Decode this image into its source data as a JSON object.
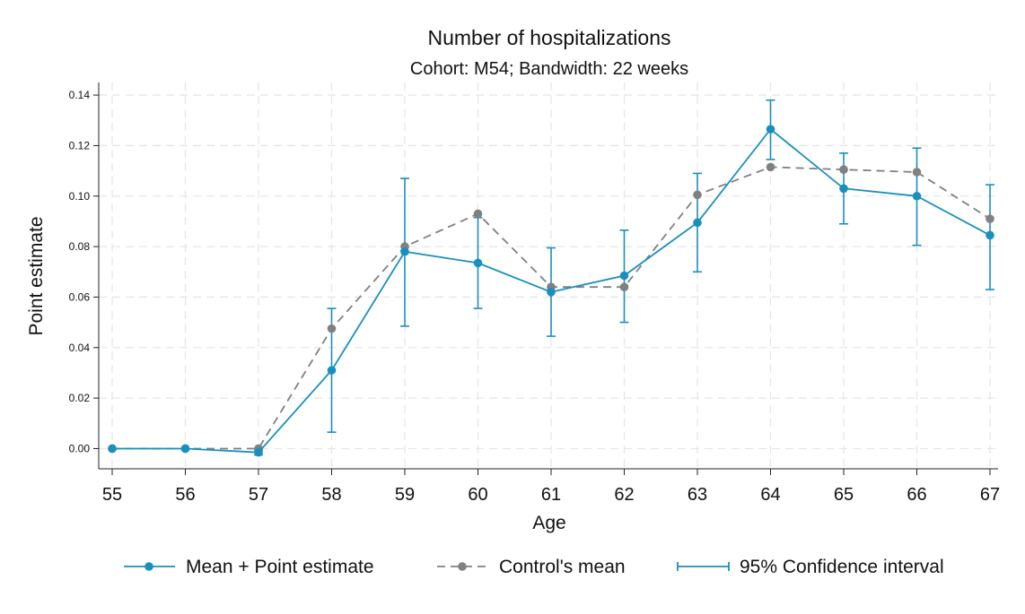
{
  "chart_data": {
    "type": "line",
    "title": "Number of hospitalizations",
    "subtitle": "Cohort: M54; Bandwidth: 22 weeks",
    "xlabel": "Age",
    "ylabel": "Point estimate",
    "x": [
      55,
      56,
      57,
      58,
      59,
      60,
      61,
      62,
      63,
      64,
      65,
      66,
      67
    ],
    "xlim": [
      55,
      67
    ],
    "ylim": [
      -0.008,
      0.145
    ],
    "yticks": [
      "0.00",
      "0.02",
      "0.04",
      "0.06",
      "0.08",
      "0.10",
      "0.12",
      "0.14"
    ],
    "ytick_values": [
      0,
      0.02,
      0.04,
      0.06,
      0.08,
      0.1,
      0.12,
      0.14
    ],
    "grid": true,
    "legend_position": "bottom",
    "series": [
      {
        "name": "Mean + Point estimate",
        "color": "#1a8fbf",
        "style": "solid",
        "values": [
          0.0,
          0.0,
          -0.0015,
          0.031,
          0.078,
          0.0735,
          0.062,
          0.0685,
          0.0895,
          0.1265,
          0.103,
          0.1,
          0.0845
        ]
      },
      {
        "name": "Control's mean",
        "color": "#808080",
        "style": "dashed",
        "values": [
          0.0,
          0.0,
          0.0,
          0.0475,
          0.08,
          0.093,
          0.064,
          0.064,
          0.1005,
          0.1115,
          0.1105,
          0.1095,
          0.091
        ]
      }
    ],
    "confidence_interval": {
      "name": "95% Confidence interval",
      "color": "#1a8fbf",
      "lower": [
        0.0,
        0.0,
        -0.0025,
        0.0065,
        0.0485,
        0.0555,
        0.0445,
        0.05,
        0.07,
        0.1145,
        0.089,
        0.0805,
        0.063
      ],
      "upper": [
        0.0,
        0.0,
        -0.0005,
        0.0555,
        0.107,
        0.0915,
        0.0795,
        0.0865,
        0.109,
        0.138,
        0.117,
        0.119,
        0.1045
      ]
    }
  }
}
